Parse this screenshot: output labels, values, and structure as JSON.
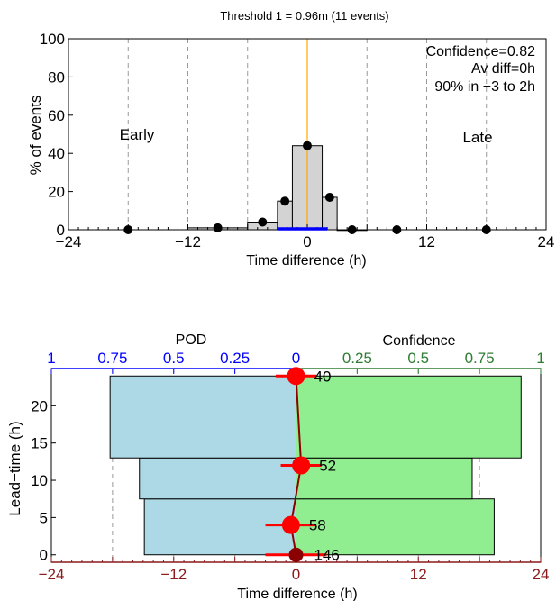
{
  "colors": {
    "hist_fill": "#d3d3d3",
    "hist_points": "#000000",
    "pod_axis": "#0000ff",
    "pod_bar": "#add8e6",
    "conf_axis": "#2e7d32",
    "conf_bar": "#90ee90",
    "bottom_axis": "#8b1a1a",
    "lead_marker": "#ff0000",
    "zero_line": "#ffa500",
    "range_bar": "#0000ff"
  },
  "chart_data": [
    {
      "type": "bar",
      "title": "Threshold 1 = 0.96m (11 events)",
      "xlabel": "Time difference (h)",
      "ylabel": "% of events",
      "xlim": [
        -24,
        24
      ],
      "ylim": [
        0,
        100
      ],
      "xticks": [
        "-24",
        "-12",
        "0",
        "12",
        "24"
      ],
      "yticks": [
        "0",
        "20",
        "40",
        "60",
        "80",
        "100"
      ],
      "grid": "vertical dashed",
      "annotations": {
        "left": "Early",
        "right": "Late",
        "stats": [
          "Confidence=0.82",
          "Av diff=0h",
          "90% in −3 to 2h"
        ]
      },
      "bins": [
        {
          "x0": -12,
          "x1": -6,
          "value": 1
        },
        {
          "x0": -6,
          "x1": -3,
          "value": 4
        },
        {
          "x0": -3,
          "x1": -1.5,
          "value": 15
        },
        {
          "x0": -1.5,
          "x1": 1.5,
          "value": 44
        },
        {
          "x0": 1.5,
          "x1": 3,
          "value": 17
        },
        {
          "x0": 3,
          "x1": 6,
          "value": 0
        }
      ],
      "points": [
        {
          "x": -18,
          "y": 0
        },
        {
          "x": -9,
          "y": 1
        },
        {
          "x": -4.5,
          "y": 4
        },
        {
          "x": -2.25,
          "y": 15
        },
        {
          "x": 0,
          "y": 44
        },
        {
          "x": 2.25,
          "y": 17
        },
        {
          "x": 4.5,
          "y": 0
        },
        {
          "x": 9,
          "y": 0
        },
        {
          "x": 18,
          "y": 0
        }
      ],
      "range": {
        "from": -3,
        "to": 2
      }
    },
    {
      "type": "bar",
      "pod_axis": {
        "label": "POD",
        "xlim": [
          1,
          0
        ],
        "ticks": [
          "1",
          "0.75",
          "0.5",
          "0.25",
          "0"
        ]
      },
      "confidence_axis": {
        "label": "Confidence",
        "xlim": [
          0,
          1
        ],
        "ticks": [
          "0",
          "0.25",
          "0.5",
          "0.75",
          "1"
        ]
      },
      "xlabel": "Time difference (h)",
      "xlim": [
        -24,
        24
      ],
      "xticks": [
        "-24",
        "-12",
        "0",
        "12",
        "24"
      ],
      "ylabel": "Lead−time (h)",
      "ylim": [
        -1,
        25
      ],
      "yticks": [
        "0",
        "5",
        "10",
        "15",
        "20"
      ],
      "bands": [
        {
          "lead_from": 0,
          "lead_to": 7.5,
          "pod": 0.62,
          "confidence": 0.81
        },
        {
          "lead_from": 7.5,
          "lead_to": 13,
          "pod": 0.64,
          "confidence": 0.72
        },
        {
          "lead_from": 13,
          "lead_to": 24,
          "pod": 0.76,
          "confidence": 0.92
        }
      ],
      "lead_points": [
        {
          "lead": 24,
          "time_diff": 0,
          "err_low": -2,
          "err_high": 2,
          "count": "40"
        },
        {
          "lead": 12,
          "time_diff": 0.5,
          "err_low": -1.5,
          "err_high": 2.5,
          "count": "52"
        },
        {
          "lead": 4,
          "time_diff": -0.5,
          "err_low": -3,
          "err_high": 2,
          "count": "58"
        },
        {
          "lead": 0,
          "time_diff": 0,
          "err_low": -3,
          "err_high": 3,
          "count": "146"
        }
      ]
    }
  ]
}
